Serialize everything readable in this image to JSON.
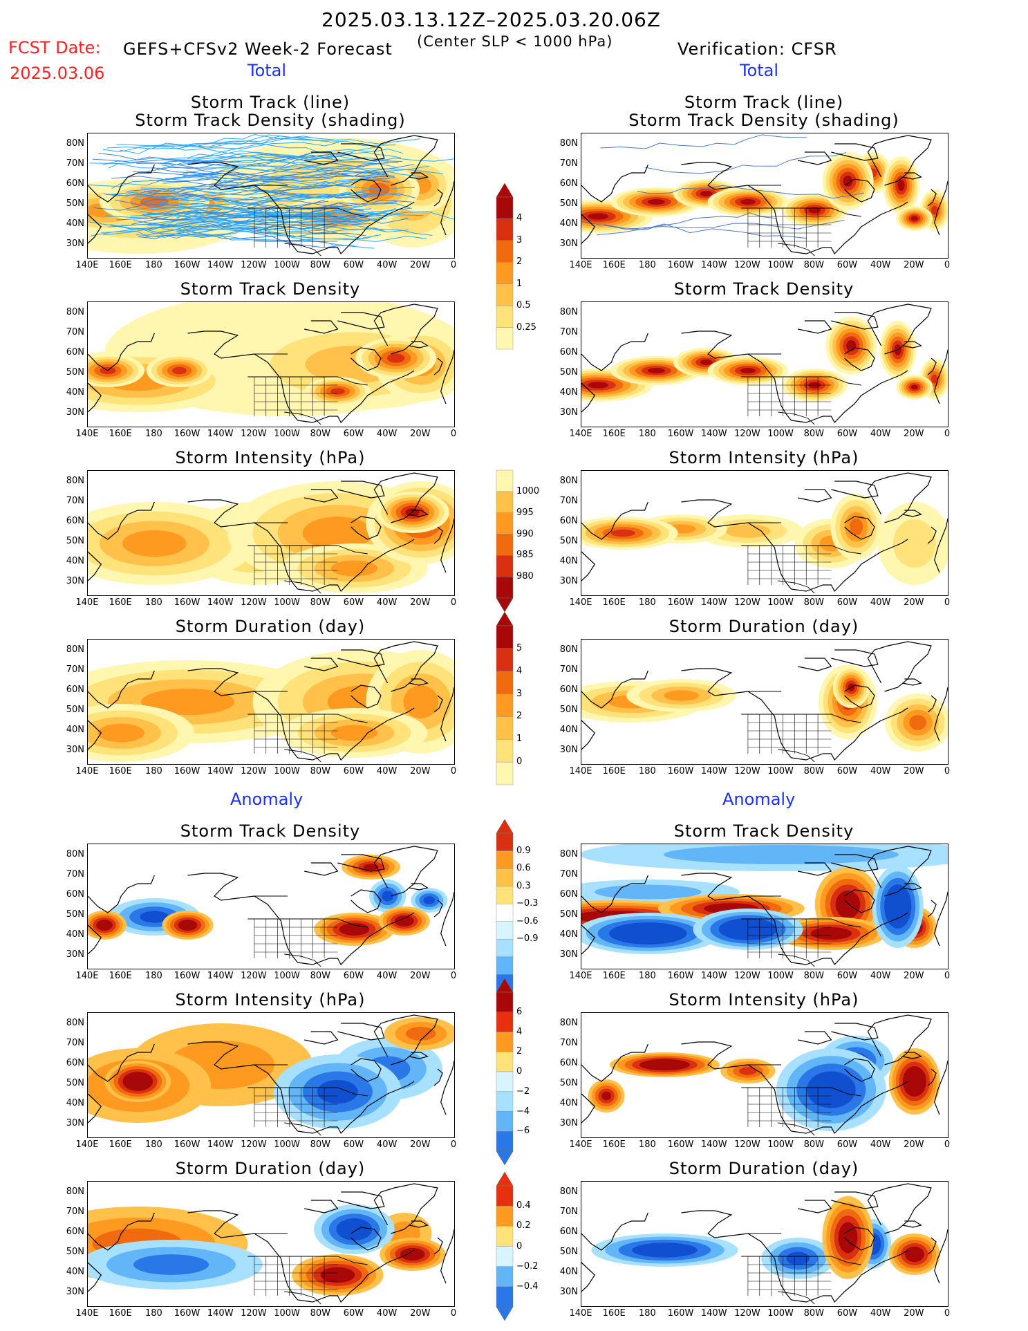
{
  "header": {
    "period": "2025.03.13.12Z–2025.03.20.06Z",
    "fcst_date_label": "FCST Date:",
    "fcst_date": "2025.03.06",
    "model": "GEFS+CFSv2 Week-2 Forecast",
    "criterion": "(Center SLP < 1000 hPa)",
    "verification": "Verification: CFSR"
  },
  "sections": {
    "total_left": "Total",
    "total_right": "Total",
    "anomaly_left": "Anomaly",
    "anomaly_right": "Anomaly"
  },
  "titles": {
    "track_line": "Storm Track (line)",
    "track_shading": "Storm Track Density (shading)",
    "density": "Storm Track Density",
    "intensity": "Storm Intensity (hPa)",
    "duration": "Storm Duration (day)"
  },
  "axes": {
    "lat_labels": [
      "80N",
      "70N",
      "60N",
      "50N",
      "40N",
      "30N"
    ],
    "lon_labels": [
      "140E",
      "160E",
      "180",
      "160W",
      "140W",
      "120W",
      "100W",
      "80W",
      "60W",
      "40W",
      "20W",
      "0"
    ]
  },
  "colorbars": {
    "density_total": [
      "4",
      "3",
      "2",
      "1",
      "0.5",
      "0.25"
    ],
    "intensity_total": [
      "1000",
      "995",
      "990",
      "985",
      "980"
    ],
    "duration_total": [
      "5",
      "4",
      "3",
      "2",
      "1",
      "0"
    ],
    "density_anom": [
      "0.9",
      "0.6",
      "0.3",
      "−0.3",
      "−0.6",
      "−0.9"
    ],
    "intensity_anom": [
      "6",
      "4",
      "2",
      "0",
      "−2",
      "−4",
      "−6"
    ],
    "duration_anom": [
      "0.4",
      "0.2",
      "0",
      "−0.2",
      "−0.4"
    ]
  },
  "colors": {
    "title_red": "#ff2020",
    "section_blue": "#1a2fff",
    "warm": [
      "#fff6b0",
      "#ffe37a",
      "#ffc14a",
      "#ff9a20",
      "#f06a10",
      "#d83010",
      "#a80808"
    ],
    "cool": [
      "#d7f4ff",
      "#a8e0ff",
      "#62b6f8",
      "#2a78e8",
      "#1050d0"
    ]
  }
}
